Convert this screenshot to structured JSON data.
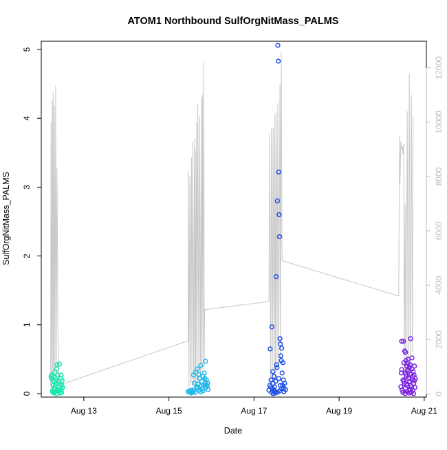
{
  "chart_data": {
    "type": "scatter",
    "title": "ATOM1 Northbound SulfOrgNitMass_PALMS",
    "xlabel": "Date",
    "ylabel": "SulfOrgNitMass_PALMS",
    "x_unit": "days (August, day-of-month)",
    "xlim": [
      12.0,
      21.05
    ],
    "ylim": [
      -0.05,
      5.12
    ],
    "ylim_right": [
      -120,
      12980
    ],
    "x_ticks": [
      {
        "value": 13,
        "label": "Aug 13"
      },
      {
        "value": 15,
        "label": "Aug 15"
      },
      {
        "value": 17,
        "label": "Aug 17"
      },
      {
        "value": 19,
        "label": "Aug 19"
      },
      {
        "value": 21,
        "label": "Aug 21"
      }
    ],
    "y_ticks": [
      {
        "value": 0,
        "label": "0"
      },
      {
        "value": 1,
        "label": "1"
      },
      {
        "value": 2,
        "label": "2"
      },
      {
        "value": 3,
        "label": "3"
      },
      {
        "value": 4,
        "label": "4"
      },
      {
        "value": 5,
        "label": "5"
      }
    ],
    "y_ticks_right": [
      {
        "value": 0,
        "label": "0"
      },
      {
        "value": 2000,
        "label": "2000"
      },
      {
        "value": 4000,
        "label": "4000"
      },
      {
        "value": 6000,
        "label": "6000"
      },
      {
        "value": 8000,
        "label": "8000"
      },
      {
        "value": 10000,
        "label": "10000"
      },
      {
        "value": 12000,
        "label": "12000"
      }
    ],
    "colors": {
      "altitude_line": "#c8c8c8",
      "right_axis_text": "#bdbdbd",
      "axis": "#000000"
    },
    "series": [
      {
        "color": "#19e6b0",
        "points": [
          [
            12.23,
            0.25
          ],
          [
            12.24,
            0.22
          ],
          [
            12.25,
            0.27
          ],
          [
            12.26,
            0.04
          ],
          [
            12.27,
            0.02
          ],
          [
            12.28,
            0.19
          ],
          [
            12.29,
            0.08
          ],
          [
            12.3,
            0.24
          ],
          [
            12.31,
            0.02
          ],
          [
            12.32,
            0.06
          ],
          [
            12.32,
            0.31
          ],
          [
            12.33,
            0.12
          ],
          [
            12.34,
            0.03
          ],
          [
            12.35,
            0.15
          ],
          [
            12.36,
            0.36
          ],
          [
            12.37,
            0.42
          ],
          [
            12.38,
            0.05
          ],
          [
            12.39,
            0.27
          ],
          [
            12.4,
            0.18
          ],
          [
            12.41,
            0.1
          ],
          [
            12.42,
            0.03
          ],
          [
            12.43,
            0.43
          ],
          [
            12.44,
            0.14
          ],
          [
            12.45,
            0.05
          ],
          [
            12.46,
            0.22
          ],
          [
            12.47,
            0.07
          ],
          [
            12.48,
            0.13
          ],
          [
            12.48,
            0.02
          ],
          [
            12.49,
            0.19
          ],
          [
            12.5,
            0.09
          ],
          [
            12.3,
            0.01
          ],
          [
            12.36,
            0.0
          ],
          [
            12.45,
            0.01
          ],
          [
            12.4,
            0.06
          ],
          [
            12.28,
            0.12
          ],
          [
            12.34,
            0.2
          ],
          [
            12.47,
            0.27
          ]
        ]
      },
      {
        "color": "#21b8e8",
        "points": [
          [
            15.45,
            0.03
          ],
          [
            15.48,
            0.04
          ],
          [
            15.5,
            0.02
          ],
          [
            15.53,
            0.05
          ],
          [
            15.55,
            0.03
          ],
          [
            15.58,
            0.27
          ],
          [
            15.6,
            0.06
          ],
          [
            15.62,
            0.02
          ],
          [
            15.63,
            0.31
          ],
          [
            15.65,
            0.08
          ],
          [
            15.67,
            0.36
          ],
          [
            15.68,
            0.14
          ],
          [
            15.7,
            0.05
          ],
          [
            15.72,
            0.22
          ],
          [
            15.73,
            0.1
          ],
          [
            15.75,
            0.41
          ],
          [
            15.77,
            0.18
          ],
          [
            15.78,
            0.07
          ],
          [
            15.8,
            0.25
          ],
          [
            15.82,
            0.12
          ],
          [
            15.83,
            0.3
          ],
          [
            15.85,
            0.15
          ],
          [
            15.86,
            0.47
          ],
          [
            15.87,
            0.09
          ],
          [
            15.88,
            0.2
          ],
          [
            15.9,
            0.11
          ],
          [
            15.92,
            0.06
          ],
          [
            15.6,
            0.15
          ],
          [
            15.7,
            0.28
          ],
          [
            15.8,
            0.04
          ],
          [
            15.84,
            0.22
          ],
          [
            15.66,
            0.1
          ],
          [
            15.76,
            0.12
          ],
          [
            15.88,
            0.13
          ],
          [
            15.52,
            0.01
          ],
          [
            15.57,
            0.02
          ],
          [
            15.74,
            0.03
          ],
          [
            15.91,
            0.16
          ]
        ]
      },
      {
        "color": "#1f4fe8",
        "points": [
          [
            17.35,
            0.05
          ],
          [
            17.37,
            0.12
          ],
          [
            17.38,
            0.65
          ],
          [
            17.4,
            0.2
          ],
          [
            17.41,
            0.02
          ],
          [
            17.42,
            0.97
          ],
          [
            17.43,
            0.08
          ],
          [
            17.44,
            0.32
          ],
          [
            17.45,
            0.15
          ],
          [
            17.46,
            0.04
          ],
          [
            17.47,
            0.25
          ],
          [
            17.48,
            0.1
          ],
          [
            17.5,
            0.03
          ],
          [
            17.51,
            0.18
          ],
          [
            17.52,
            1.7
          ],
          [
            17.53,
            0.42
          ],
          [
            17.54,
            0.38
          ],
          [
            17.55,
            2.8
          ],
          [
            17.56,
            5.06
          ],
          [
            17.57,
            4.83
          ],
          [
            17.58,
            3.22
          ],
          [
            17.59,
            2.6
          ],
          [
            17.6,
            2.28
          ],
          [
            17.61,
            0.8
          ],
          [
            17.62,
            0.72
          ],
          [
            17.63,
            0.55
          ],
          [
            17.64,
            0.48
          ],
          [
            17.65,
            0.66
          ],
          [
            17.66,
            0.3
          ],
          [
            17.67,
            0.12
          ],
          [
            17.68,
            0.45
          ],
          [
            17.69,
            0.2
          ],
          [
            17.7,
            0.08
          ],
          [
            17.72,
            0.15
          ],
          [
            17.74,
            0.06
          ],
          [
            17.45,
            0.0
          ],
          [
            17.5,
            0.01
          ],
          [
            17.55,
            0.02
          ],
          [
            17.6,
            0.04
          ],
          [
            17.65,
            0.07
          ],
          [
            17.4,
            0.1
          ],
          [
            17.58,
            0.22
          ],
          [
            17.62,
            0.12
          ],
          [
            17.7,
            0.03
          ]
        ]
      },
      {
        "color": "#7a22e0",
        "points": [
          [
            20.45,
            0.1
          ],
          [
            20.46,
            0.3
          ],
          [
            20.47,
            0.76
          ],
          [
            20.48,
            0.05
          ],
          [
            20.5,
            0.2
          ],
          [
            20.51,
            0.76
          ],
          [
            20.52,
            0.45
          ],
          [
            20.53,
            0.15
          ],
          [
            20.54,
            0.62
          ],
          [
            20.55,
            0.3
          ],
          [
            20.56,
            0.08
          ],
          [
            20.57,
            0.48
          ],
          [
            20.58,
            0.25
          ],
          [
            20.59,
            0.4
          ],
          [
            20.6,
            0.12
          ],
          [
            20.61,
            0.35
          ],
          [
            20.62,
            0.5
          ],
          [
            20.63,
            0.22
          ],
          [
            20.64,
            0.05
          ],
          [
            20.65,
            0.38
          ],
          [
            20.66,
            0.18
          ],
          [
            20.67,
            0.42
          ],
          [
            20.68,
            0.8
          ],
          [
            20.69,
            0.28
          ],
          [
            20.7,
            0.1
          ],
          [
            20.71,
            0.36
          ],
          [
            20.72,
            0.2
          ],
          [
            20.73,
            0.05
          ],
          [
            20.74,
            0.32
          ],
          [
            20.75,
            0.15
          ],
          [
            20.76,
            0.27
          ],
          [
            20.77,
            0.4
          ],
          [
            20.78,
            0.09
          ],
          [
            20.79,
            0.22
          ],
          [
            20.5,
            0.02
          ],
          [
            20.55,
            0.0
          ],
          [
            20.6,
            0.03
          ],
          [
            20.65,
            0.01
          ],
          [
            20.7,
            0.02
          ],
          [
            20.75,
            0.0
          ],
          [
            20.52,
            0.18
          ],
          [
            20.58,
            0.14
          ],
          [
            20.63,
            0.33
          ],
          [
            20.68,
            0.12
          ],
          [
            20.73,
            0.25
          ],
          [
            20.47,
            0.35
          ],
          [
            20.57,
            0.28
          ],
          [
            20.67,
            0.06
          ],
          [
            20.77,
            0.19
          ],
          [
            20.61,
            0.44
          ],
          [
            20.71,
            0.52
          ],
          [
            20.56,
            0.6
          ]
        ]
      }
    ],
    "altitude_right_axis": {
      "points": [
        [
          12.22,
          300
        ],
        [
          12.23,
          10000
        ],
        [
          12.24,
          500
        ],
        [
          12.26,
          10800
        ],
        [
          12.27,
          400
        ],
        [
          12.28,
          11100
        ],
        [
          12.29,
          500
        ],
        [
          12.31,
          10600
        ],
        [
          12.32,
          600
        ],
        [
          12.34,
          11350
        ],
        [
          12.35,
          400
        ],
        [
          12.37,
          8300
        ],
        [
          12.4,
          400
        ],
        [
          12.48,
          350
        ],
        [
          15.45,
          1950
        ],
        [
          15.46,
          8200
        ],
        [
          15.47,
          200
        ],
        [
          15.49,
          8000
        ],
        [
          15.5,
          300
        ],
        [
          15.53,
          8700
        ],
        [
          15.54,
          400
        ],
        [
          15.56,
          9300
        ],
        [
          15.58,
          300
        ],
        [
          15.6,
          9400
        ],
        [
          15.61,
          200
        ],
        [
          15.62,
          9000
        ],
        [
          15.63,
          300
        ],
        [
          15.65,
          10000
        ],
        [
          15.66,
          400
        ],
        [
          15.68,
          10700
        ],
        [
          15.7,
          500
        ],
        [
          15.72,
          10200
        ],
        [
          15.74,
          600
        ],
        [
          15.76,
          10900
        ],
        [
          15.77,
          800
        ],
        [
          15.79,
          11000
        ],
        [
          15.8,
          900
        ],
        [
          15.82,
          12200
        ],
        [
          15.83,
          1000
        ],
        [
          15.84,
          3100
        ],
        [
          17.35,
          3400
        ],
        [
          17.37,
          9600
        ],
        [
          17.39,
          300
        ],
        [
          17.41,
          9800
        ],
        [
          17.43,
          500
        ],
        [
          17.45,
          9800
        ],
        [
          17.47,
          400
        ],
        [
          17.49,
          10300
        ],
        [
          17.5,
          600
        ],
        [
          17.52,
          10400
        ],
        [
          17.54,
          800
        ],
        [
          17.56,
          10700
        ],
        [
          17.58,
          1000
        ],
        [
          17.61,
          11400
        ],
        [
          17.62,
          1100
        ],
        [
          17.64,
          12600
        ],
        [
          17.66,
          4900
        ],
        [
          20.4,
          3600
        ],
        [
          20.42,
          9500
        ],
        [
          20.43,
          7700
        ],
        [
          20.45,
          9300
        ],
        [
          20.47,
          9000
        ],
        [
          20.49,
          9100
        ],
        [
          20.5,
          8800
        ],
        [
          20.52,
          9200
        ],
        [
          20.53,
          600
        ],
        [
          20.55,
          7000
        ],
        [
          20.57,
          300
        ],
        [
          20.6,
          10400
        ],
        [
          20.62,
          500
        ],
        [
          20.65,
          11800
        ],
        [
          20.67,
          400
        ],
        [
          20.7,
          11000
        ],
        [
          20.72,
          1500
        ],
        [
          20.74,
          10200
        ]
      ]
    }
  }
}
